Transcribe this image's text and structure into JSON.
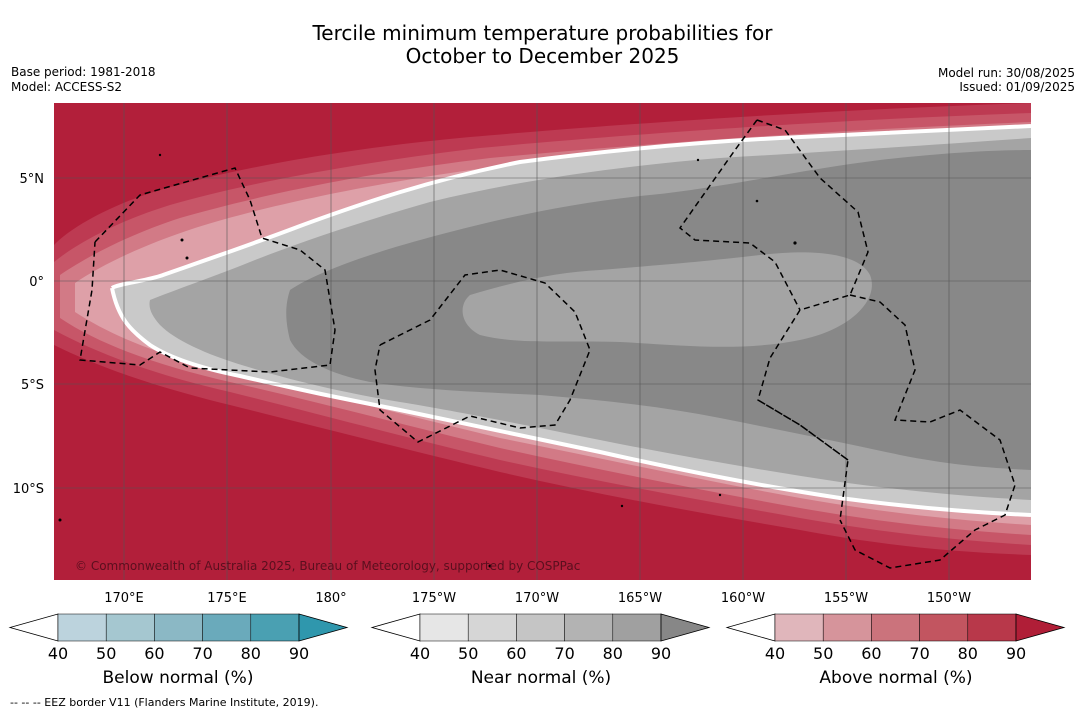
{
  "title": {
    "line1": "Tercile minimum temperature probabilities for",
    "line2": "October to December 2025"
  },
  "meta": {
    "base_period": "Base period: 1981-2018",
    "model": "Model: ACCESS-S2",
    "model_run": "Model run: 30/08/2025",
    "issued": "Issued: 01/09/2025"
  },
  "map": {
    "lat_labels": [
      "5°N",
      "0°",
      "5°S",
      "10°S"
    ],
    "lon_labels": [
      "170°E",
      "175°E",
      "180°",
      "175°W",
      "170°W",
      "165°W",
      "160°W",
      "155°W",
      "150°W"
    ],
    "copyright": "© Commonwealth of Australia 2025, Bureau of Meteorology, supported by COSPPac",
    "colors": {
      "above_90": "#b21f3a",
      "above_80": "#bd3a52",
      "above_70": "#c75668",
      "above_60": "#d27a86",
      "above_50": "#dea0a8",
      "near_40": "#c9c9c9",
      "near_60": "#a4a4a4",
      "near_80": "#888888"
    }
  },
  "colorbars": [
    {
      "title": "Below normal (%)",
      "ticks": [
        "40",
        "50",
        "60",
        "70",
        "80",
        "90"
      ],
      "colors": [
        "#bcd3dd",
        "#a5c7d0",
        "#8bb8c5",
        "#6aaabb",
        "#4aa0b2",
        "#2f97ad"
      ]
    },
    {
      "title": "Near normal (%)",
      "ticks": [
        "40",
        "50",
        "60",
        "70",
        "80",
        "90"
      ],
      "colors": [
        "#e6e6e6",
        "#d6d6d6",
        "#c5c5c5",
        "#b3b3b3",
        "#a0a0a0",
        "#878787"
      ]
    },
    {
      "title": "Above normal (%)",
      "ticks": [
        "40",
        "50",
        "60",
        "70",
        "80",
        "90"
      ],
      "colors": [
        "#e0b6bb",
        "#d6949b",
        "#cb737c",
        "#c25560",
        "#b8384a",
        "#b01e37"
      ]
    }
  ],
  "footnote": "--  --  -- EEZ border V11 (Flanders Marine Institute, 2019)."
}
